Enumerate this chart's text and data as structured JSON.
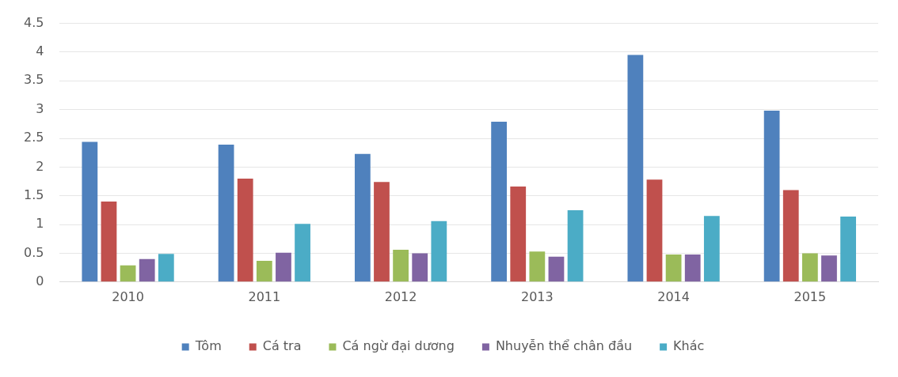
{
  "chart_data": {
    "type": "bar",
    "categories": [
      "2010",
      "2011",
      "2012",
      "2013",
      "2014",
      "2015"
    ],
    "series": [
      {
        "name": "Tôm",
        "color": "#4f81bd",
        "values": [
          2.44,
          2.39,
          2.23,
          2.79,
          3.95,
          2.98
        ]
      },
      {
        "name": "Cá tra",
        "color": "#c0504d",
        "values": [
          1.4,
          1.8,
          1.74,
          1.66,
          1.78,
          1.6
        ]
      },
      {
        "name": "Cá ngừ đại dương",
        "color": "#9bbb59",
        "values": [
          0.29,
          0.37,
          0.56,
          0.53,
          0.48,
          0.5
        ]
      },
      {
        "name": "Nhuyễn thể chân đầu",
        "color": "#8064a2",
        "values": [
          0.4,
          0.51,
          0.5,
          0.44,
          0.48,
          0.46
        ]
      },
      {
        "name": "Khác",
        "color": "#4bacc6",
        "values": [
          0.49,
          1.01,
          1.06,
          1.25,
          1.15,
          1.14
        ]
      }
    ],
    "ylim": [
      0,
      4.5
    ],
    "yticks": [
      0,
      0.5,
      1,
      1.5,
      2,
      2.5,
      3,
      3.5,
      4,
      4.5
    ],
    "grid": "y",
    "legend": "bottom"
  }
}
